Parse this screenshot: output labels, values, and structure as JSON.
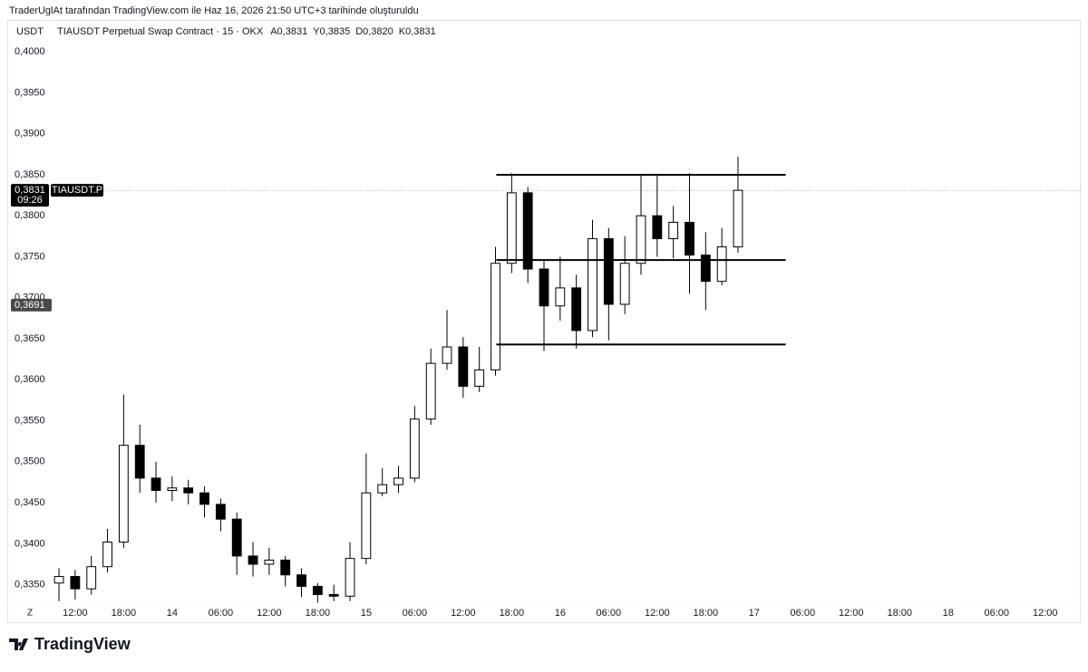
{
  "caption": "TraderUglAt tarafından TradingView.com ile Haz 16, 2026 21:50 UTC+3 tarihinde oluşturuldu",
  "brand": "TradingView",
  "chart_data": {
    "type": "candlestick",
    "currency": "USDT",
    "title": "TIAUSDT Perpetual Swap Contract · 15 · OKX",
    "ohlc_legend": [
      "A0,3831",
      "Y0,3835",
      "D0,3820",
      "K0,3831"
    ],
    "timezone_button": "Z",
    "up_color": "#ffffff",
    "down_color": "#000000",
    "edge_color": "#000000",
    "x": [
      10,
      12,
      14,
      16,
      18,
      20,
      22,
      24,
      26,
      28,
      30,
      32,
      34,
      36,
      38,
      40,
      42,
      44,
      46,
      48,
      50,
      52,
      54,
      56,
      58,
      60,
      62,
      64,
      66,
      68,
      70,
      72,
      74,
      76,
      78,
      80,
      82,
      84,
      86,
      88,
      90,
      92,
      94
    ],
    "open": [
      0.3352,
      0.336,
      0.3345,
      0.3372,
      0.3402,
      0.352,
      0.348,
      0.3465,
      0.3468,
      0.3462,
      0.3448,
      0.343,
      0.3385,
      0.3375,
      0.338,
      0.3362,
      0.3348,
      0.3338,
      0.3336,
      0.3382,
      0.3462,
      0.3472,
      0.348,
      0.3552,
      0.362,
      0.364,
      0.3592,
      0.3612,
      0.3742,
      0.3828,
      0.3735,
      0.369,
      0.3712,
      0.366,
      0.3772,
      0.3692,
      0.3742,
      0.38,
      0.3772,
      0.3792,
      0.3752,
      0.372,
      0.3762
    ],
    "high": [
      0.337,
      0.3368,
      0.3385,
      0.3418,
      0.3582,
      0.3545,
      0.35,
      0.3482,
      0.3478,
      0.347,
      0.3455,
      0.3438,
      0.3402,
      0.3395,
      0.3385,
      0.337,
      0.3352,
      0.335,
      0.3402,
      0.351,
      0.3492,
      0.3495,
      0.3568,
      0.3638,
      0.3685,
      0.3652,
      0.364,
      0.3762,
      0.3852,
      0.3835,
      0.3745,
      0.375,
      0.3728,
      0.3795,
      0.3785,
      0.3775,
      0.385,
      0.385,
      0.3812,
      0.3852,
      0.378,
      0.3785,
      0.3872
    ],
    "low": [
      0.333,
      0.3332,
      0.3338,
      0.3365,
      0.3395,
      0.3462,
      0.345,
      0.3452,
      0.3448,
      0.3432,
      0.3415,
      0.3362,
      0.336,
      0.3362,
      0.3348,
      0.3335,
      0.3328,
      0.333,
      0.333,
      0.3375,
      0.3458,
      0.3462,
      0.3475,
      0.3545,
      0.3612,
      0.3578,
      0.3585,
      0.3605,
      0.373,
      0.3718,
      0.3635,
      0.3672,
      0.3638,
      0.3652,
      0.3648,
      0.368,
      0.3728,
      0.375,
      0.3748,
      0.3705,
      0.3685,
      0.3715,
      0.3755
    ],
    "close": [
      0.336,
      0.3345,
      0.3372,
      0.3402,
      0.352,
      0.348,
      0.3465,
      0.3468,
      0.3462,
      0.3448,
      0.343,
      0.3385,
      0.3375,
      0.338,
      0.3362,
      0.3348,
      0.3338,
      0.3336,
      0.3382,
      0.3462,
      0.3472,
      0.348,
      0.3552,
      0.362,
      0.364,
      0.3592,
      0.3612,
      0.3742,
      0.3828,
      0.3735,
      0.369,
      0.3712,
      0.366,
      0.3772,
      0.3692,
      0.3742,
      0.38,
      0.3772,
      0.3792,
      0.3752,
      0.372,
      0.3762,
      0.3831
    ],
    "xlim": [
      3.6,
      136.4
    ],
    "ylim": [
      0.3333,
      0.403
    ],
    "yticks": [
      {
        "value": 0.4,
        "label": "0,4000"
      },
      {
        "value": 0.395,
        "label": "0,3950"
      },
      {
        "value": 0.39,
        "label": "0,3900"
      },
      {
        "value": 0.385,
        "label": "0,3850"
      },
      {
        "value": 0.38,
        "label": "0,3800"
      },
      {
        "value": 0.375,
        "label": "0,3750"
      },
      {
        "value": 0.37,
        "label": "0,3700"
      },
      {
        "value": 0.365,
        "label": "0,3650"
      },
      {
        "value": 0.36,
        "label": "0,3600"
      },
      {
        "value": 0.355,
        "label": "0,3550"
      },
      {
        "value": 0.35,
        "label": "0,3500"
      },
      {
        "value": 0.345,
        "label": "0,3450"
      },
      {
        "value": 0.34,
        "label": "0,3400"
      },
      {
        "value": 0.335,
        "label": "0,3350"
      }
    ],
    "xticks": [
      {
        "value": 12,
        "label": "12:00"
      },
      {
        "value": 18,
        "label": "18:00"
      },
      {
        "value": 24,
        "label": "14"
      },
      {
        "value": 30,
        "label": "06:00"
      },
      {
        "value": 36,
        "label": "12:00"
      },
      {
        "value": 42,
        "label": "18:00"
      },
      {
        "value": 48,
        "label": "15"
      },
      {
        "value": 54,
        "label": "06:00"
      },
      {
        "value": 60,
        "label": "12:00"
      },
      {
        "value": 66,
        "label": "18:00"
      },
      {
        "value": 72,
        "label": "16"
      },
      {
        "value": 78,
        "label": "06:00"
      },
      {
        "value": 84,
        "label": "12:00"
      },
      {
        "value": 90,
        "label": "18:00"
      },
      {
        "value": 96,
        "label": "17"
      },
      {
        "value": 102,
        "label": "06:00"
      },
      {
        "value": 108,
        "label": "12:00"
      },
      {
        "value": 114,
        "label": "18:00"
      },
      {
        "value": 120,
        "label": "18"
      },
      {
        "value": 126,
        "label": "06:00"
      },
      {
        "value": 132,
        "label": "12:00"
      }
    ],
    "levels": [
      {
        "y": 0.385,
        "x": [
          64.1,
          99.9
        ]
      },
      {
        "y": 0.3746,
        "x": [
          64.1,
          99.9
        ]
      },
      {
        "y": 0.3643,
        "x": [
          64.1,
          99.9
        ]
      }
    ],
    "last_price": {
      "value": 0.3831,
      "label": "0,3831"
    },
    "countdown": "09:26",
    "symbol_tag": "TIAUSDT.P",
    "crosshair_price": {
      "value": 0.3691,
      "label": "0,3691"
    }
  }
}
